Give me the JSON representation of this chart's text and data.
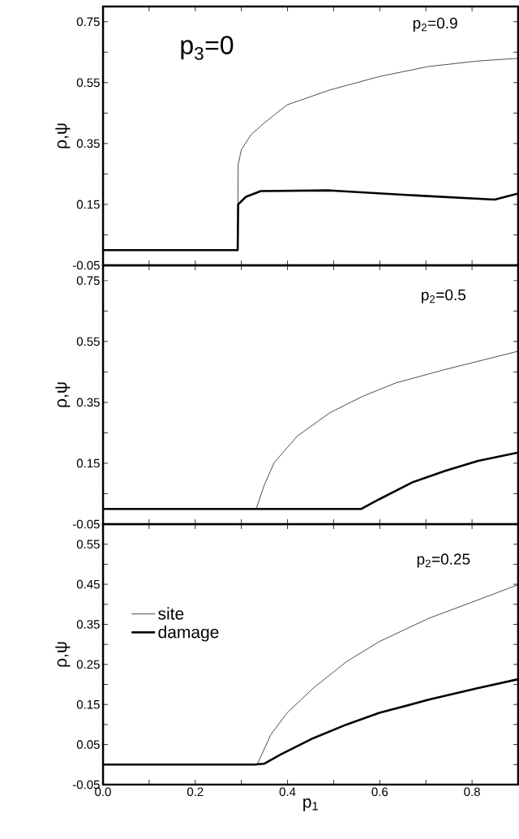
{
  "chart_data": [
    {
      "type": "line",
      "ylabel": "ρ,ψ",
      "annotations": [
        "p$_{2}$=0.9",
        "p$_{3}$=0"
      ],
      "xlim": [
        0,
        0.9
      ],
      "ylim": [
        -0.05,
        0.8
      ],
      "marker": "none",
      "tick_labels": "y",
      "xticks": [
        {
          "value": 0,
          "label": null
        },
        {
          "value": 0.1,
          "label": null
        },
        {
          "value": 0.2,
          "label": null
        },
        {
          "value": 0.3,
          "label": null
        },
        {
          "value": 0.4,
          "label": null
        },
        {
          "value": 0.5,
          "label": null
        },
        {
          "value": 0.6,
          "label": null
        },
        {
          "value": 0.7,
          "label": null
        },
        {
          "value": 0.8,
          "label": null
        }
      ],
      "yticks": [
        -0.05,
        {
          "value": 0.05,
          "label": null
        },
        0.15,
        {
          "value": 0.25,
          "label": null
        },
        0.35,
        {
          "value": 0.45,
          "label": null
        },
        0.55,
        {
          "value": 0.65,
          "label": null
        },
        0.75
      ],
      "series": [
        {
          "color": "#000000",
          "x": [
            0,
            0.292,
            0.293,
            0.3,
            0.321,
            0.349,
            0.399,
            0.492,
            0.599,
            0.706,
            0.813,
            0.9
          ],
          "values": [
            0,
            0,
            0.28,
            0.33,
            0.379,
            0.417,
            0.477,
            0.526,
            0.57,
            0.603,
            0.621,
            0.63
          ]
        },
        {
          "color": "#000000",
          "x": [
            0,
            0.292,
            0.293,
            0.31,
            0.342,
            0.492,
            0.635,
            0.849,
            0.9
          ],
          "values": [
            0,
            0,
            0.15,
            0.175,
            0.194,
            0.196,
            0.183,
            0.166,
            0.186
          ]
        }
      ]
    },
    {
      "type": "line",
      "ylabel": "ρ,ψ",
      "annotations": [
        "p$_{2}$=0.5"
      ],
      "xlim": [
        0,
        0.9
      ],
      "ylim": [
        -0.05,
        0.8
      ],
      "marker": "none",
      "tick_labels": "y",
      "xticks": [
        {
          "value": 0,
          "label": null
        },
        {
          "value": 0.1,
          "label": null
        },
        {
          "value": 0.2,
          "label": null
        },
        {
          "value": 0.3,
          "label": null
        },
        {
          "value": 0.4,
          "label": null
        },
        {
          "value": 0.5,
          "label": null
        },
        {
          "value": 0.6,
          "label": null
        },
        {
          "value": 0.7,
          "label": null
        },
        {
          "value": 0.8,
          "label": null
        }
      ],
      "yticks": [
        -0.05,
        {
          "value": 0.05,
          "label": null
        },
        0.15,
        {
          "value": 0.25,
          "label": null
        },
        0.35,
        {
          "value": 0.45,
          "label": null
        },
        0.55,
        {
          "value": 0.65,
          "label": null
        },
        0.75
      ],
      "series": [
        {
          "color": "#000000",
          "x": [
            0,
            0.332,
            0.349,
            0.371,
            0.421,
            0.492,
            0.563,
            0.635,
            0.742,
            0.9
          ],
          "values": [
            0,
            0,
            0.076,
            0.152,
            0.239,
            0.316,
            0.37,
            0.414,
            0.458,
            0.518
          ]
        },
        {
          "color": "#000000",
          "x": [
            0,
            0.56,
            0.599,
            0.67,
            0.742,
            0.813,
            0.9
          ],
          "values": [
            0,
            0,
            0.032,
            0.087,
            0.125,
            0.158,
            0.185
          ]
        }
      ]
    },
    {
      "type": "line",
      "xlabel": "p$_{1}$",
      "ylabel": "ρ,ψ",
      "annotations": [
        "p$_{2}$=0.25"
      ],
      "xlim": [
        0,
        0.9
      ],
      "ylim": [
        -0.05,
        0.6
      ],
      "marker": "none",
      "legend": "left",
      "xticks": [
        {
          "value": 0,
          "label": "0.0"
        },
        {
          "value": 0.1,
          "label": null
        },
        0.2,
        {
          "value": 0.3,
          "label": null
        },
        0.4,
        {
          "value": 0.5,
          "label": null
        },
        0.6,
        {
          "value": 0.7,
          "label": null
        },
        0.8
      ],
      "yticks": [
        -0.05,
        {
          "value": 0.0,
          "label": null
        },
        0.05,
        {
          "value": 0.1,
          "label": null
        },
        0.15,
        {
          "value": 0.2,
          "label": null
        },
        0.25,
        {
          "value": 0.3,
          "label": null
        },
        0.35,
        {
          "value": 0.4,
          "label": null
        },
        0.45,
        {
          "value": 0.5,
          "label": null
        },
        0.55
      ],
      "series": [
        {
          "name": "site",
          "color": "#000000",
          "x": [
            0,
            0.334,
            0.364,
            0.399,
            0.456,
            0.528,
            0.599,
            0.706,
            0.813,
            0.9
          ],
          "values": [
            0,
            0,
            0.075,
            0.129,
            0.191,
            0.257,
            0.307,
            0.365,
            0.411,
            0.449
          ]
        },
        {
          "name": "damage",
          "color": "#000000",
          "x": [
            0,
            0.328,
            0.349,
            0.385,
            0.456,
            0.528,
            0.599,
            0.706,
            0.813,
            0.9
          ],
          "values": [
            0,
            0,
            0.002,
            0.025,
            0.066,
            0.1,
            0.129,
            0.162,
            0.191,
            0.213
          ]
        }
      ]
    }
  ]
}
